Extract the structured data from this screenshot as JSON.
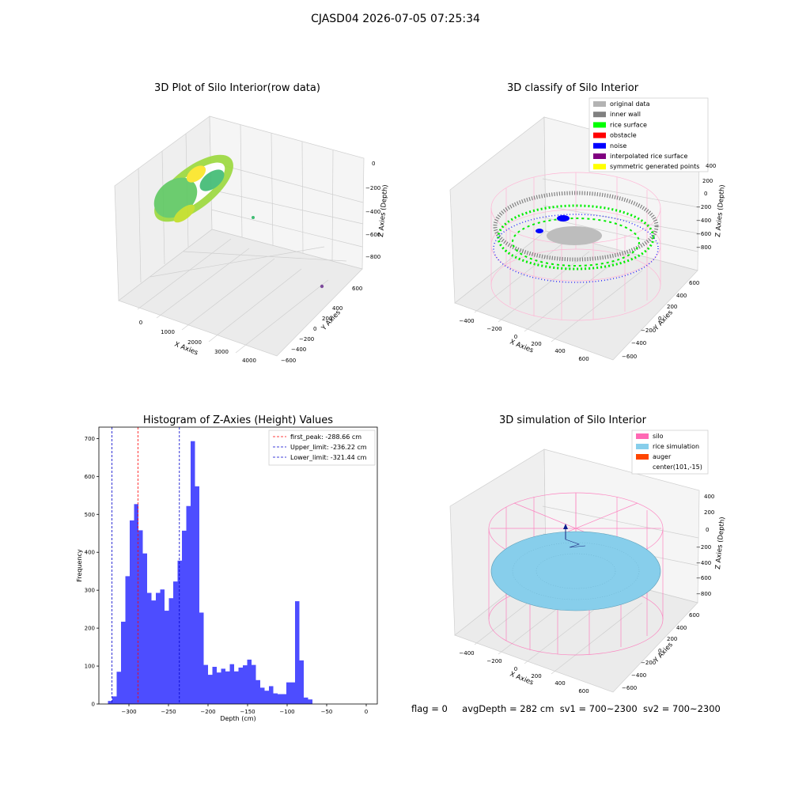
{
  "figure": {
    "suptitle": "CJASD04 2026-07-05 07:25:34"
  },
  "panels": {
    "raw": {
      "title": "3D Plot of Silo Interior(row data)",
      "xlabel": "X Axies",
      "ylabel": "Y Axies",
      "zlabel": "Z Axies (Depth)",
      "xticks": [
        "0",
        "1000",
        "2000",
        "3000",
        "4000"
      ],
      "yticks": [
        "600",
        "400",
        "200",
        "0",
        "−200",
        "−400",
        "−600"
      ],
      "zticks": [
        "0",
        "−200",
        "−400",
        "−600",
        "−800"
      ],
      "colors": {
        "point_high": "#fde725",
        "point_mid": "#5ec962",
        "point_low": "#21918c",
        "outlier": "#7d4b9b"
      }
    },
    "classify": {
      "title": "3D classify of Silo Interior",
      "xlabel": "X Axies",
      "ylabel": "Y Axies",
      "zlabel": "Z Axies (Depth)",
      "xticks": [
        "−400",
        "−200",
        "0",
        "200",
        "400",
        "600"
      ],
      "yticks": [
        "600",
        "400",
        "200",
        "0",
        "−200",
        "−400",
        "−600"
      ],
      "zticks": [
        "400",
        "200",
        "0",
        "−200",
        "−400",
        "−600",
        "−800"
      ],
      "legend": [
        {
          "label": "original data",
          "color": "#b3b3b3"
        },
        {
          "label": "inner wall",
          "color": "#808080"
        },
        {
          "label": "rice surface",
          "color": "#00ff00"
        },
        {
          "label": "obstacle",
          "color": "#ff0000"
        },
        {
          "label": "noise",
          "color": "#0000ff"
        },
        {
          "label": "interpolated rice surface",
          "color": "#800080"
        },
        {
          "label": "symmetric generated points",
          "color": "#ffff00"
        }
      ]
    },
    "simulation": {
      "title": "3D simulation of Silo Interior",
      "xlabel": "X Axies",
      "ylabel": "Y Axies",
      "zlabel": "Z Axies (Depth)",
      "xticks": [
        "−400",
        "−200",
        "0",
        "200",
        "400",
        "600"
      ],
      "yticks": [
        "600",
        "400",
        "200",
        "0",
        "−200",
        "−400",
        "−600"
      ],
      "zticks": [
        "400",
        "200",
        "0",
        "−200",
        "−400",
        "−600",
        "−800"
      ],
      "legend": [
        {
          "label": "silo",
          "color": "#ff69b4"
        },
        {
          "label": "rice simulation",
          "color": "#87ceeb"
        },
        {
          "label": "auger",
          "color": "#ff4500"
        },
        {
          "label": "center(101,-15)",
          "color": ""
        }
      ]
    }
  },
  "footer": {
    "flag": "flag = 0",
    "avg": "avgDepth = 282 cm",
    "sv1": "sv1 = 700~2300",
    "sv2": "sv2 = 700~2300"
  },
  "chart_data": {
    "type": "bar",
    "title": "Histogram of Z-Axies (Height) Values",
    "xlabel": "Depth (cm)",
    "ylabel": "Frequency",
    "xlim": [
      -338,
      14
    ],
    "ylim": [
      0,
      730
    ],
    "xticks": [
      -300,
      -250,
      -200,
      -150,
      -100,
      -50,
      0
    ],
    "xtick_labels": [
      "−300",
      "−250",
      "−200",
      "−150",
      "−100",
      "−50",
      "0"
    ],
    "yticks": [
      0,
      100,
      200,
      300,
      400,
      500,
      600,
      700
    ],
    "bar_color": "#4d4dff",
    "bin_start": -326.5,
    "bin_width": 5.5,
    "values": [
      8,
      20,
      85,
      217,
      337,
      484,
      527,
      458,
      397,
      293,
      273,
      293,
      302,
      246,
      279,
      323,
      378,
      457,
      522,
      693,
      574,
      241,
      103,
      77,
      98,
      83,
      93,
      86,
      105,
      86,
      96,
      102,
      117,
      103,
      63,
      43,
      35,
      47,
      28,
      26,
      26,
      57,
      57,
      271,
      115,
      17,
      12
    ],
    "lines": [
      {
        "label": "first_peak: -288.66 cm",
        "x": -288.66,
        "color": "#ff0000"
      },
      {
        "label": "Upper_limit: -236.22 cm",
        "x": -236.22,
        "color": "#0000cc"
      },
      {
        "label": "Lower_limit: -321.44 cm",
        "x": -321.44,
        "color": "#0000cc"
      }
    ],
    "legend_position": "top-right"
  }
}
